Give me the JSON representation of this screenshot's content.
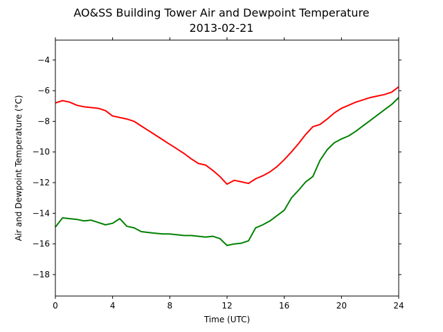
{
  "chart_data": {
    "type": "line",
    "title": "AO&SS Building Tower Air and Dewpoint Temperature",
    "subtitle": "2013-02-21",
    "xlabel": "Time (UTC)",
    "ylabel": "Air and Dewpoint Temperature (°C)",
    "xlim": [
      0,
      24
    ],
    "ylim": [
      -19.4,
      -2.7
    ],
    "xticks": [
      0,
      4,
      8,
      12,
      16,
      20,
      24
    ],
    "yticks": [
      -18,
      -16,
      -14,
      -12,
      -10,
      -8,
      -6,
      -4
    ],
    "grid": false,
    "series": [
      {
        "color": "#ff0000",
        "x": [
          0,
          0.5,
          1,
          1.5,
          2,
          2.5,
          3,
          3.5,
          4,
          4.5,
          5,
          5.5,
          6,
          6.5,
          7,
          7.5,
          8,
          8.5,
          9,
          9.5,
          10,
          10.5,
          11,
          11.5,
          12,
          12.5,
          13,
          13.5,
          14,
          14.5,
          15,
          15.5,
          16,
          16.5,
          17,
          17.5,
          18,
          18.5,
          19,
          19.5,
          20,
          20.5,
          21,
          21.5,
          22,
          22.5,
          23,
          23.5,
          24
        ],
        "values": [
          -6.8,
          -6.65,
          -6.75,
          -6.95,
          -7.05,
          -7.1,
          -7.15,
          -7.3,
          -7.65,
          -7.75,
          -7.85,
          -8.0,
          -8.3,
          -8.6,
          -8.9,
          -9.2,
          -9.5,
          -9.8,
          -10.1,
          -10.45,
          -10.75,
          -10.85,
          -11.2,
          -11.6,
          -12.1,
          -11.85,
          -11.95,
          -12.05,
          -11.75,
          -11.55,
          -11.3,
          -10.95,
          -10.5,
          -10.0,
          -9.45,
          -8.85,
          -8.35,
          -8.2,
          -7.85,
          -7.45,
          -7.15,
          -6.95,
          -6.75,
          -6.6,
          -6.45,
          -6.35,
          -6.25,
          -6.1,
          -5.75
        ]
      },
      {
        "color": "#008000",
        "x": [
          0,
          0.5,
          1,
          1.5,
          2,
          2.5,
          3,
          3.5,
          4,
          4.5,
          5,
          5.5,
          6,
          6.5,
          7,
          7.5,
          8,
          8.5,
          9,
          9.5,
          10,
          10.5,
          11,
          11.5,
          12,
          12.5,
          13,
          13.5,
          14,
          14.5,
          15,
          15.5,
          16,
          16.5,
          17,
          17.5,
          18,
          18.5,
          19,
          19.5,
          20,
          20.5,
          21,
          21.5,
          22,
          22.5,
          23,
          23.5,
          24
        ],
        "values": [
          -14.9,
          -14.3,
          -14.35,
          -14.4,
          -14.5,
          -14.45,
          -14.6,
          -14.75,
          -14.65,
          -14.35,
          -14.85,
          -14.95,
          -15.2,
          -15.25,
          -15.3,
          -15.35,
          -15.35,
          -15.4,
          -15.45,
          -15.45,
          -15.5,
          -15.55,
          -15.5,
          -15.65,
          -16.1,
          -16.0,
          -15.95,
          -15.8,
          -14.95,
          -14.75,
          -14.5,
          -14.15,
          -13.8,
          -13.0,
          -12.5,
          -11.95,
          -11.6,
          -10.55,
          -9.85,
          -9.4,
          -9.15,
          -8.95,
          -8.65,
          -8.3,
          -7.95,
          -7.6,
          -7.25,
          -6.9,
          -6.45
        ]
      }
    ]
  }
}
